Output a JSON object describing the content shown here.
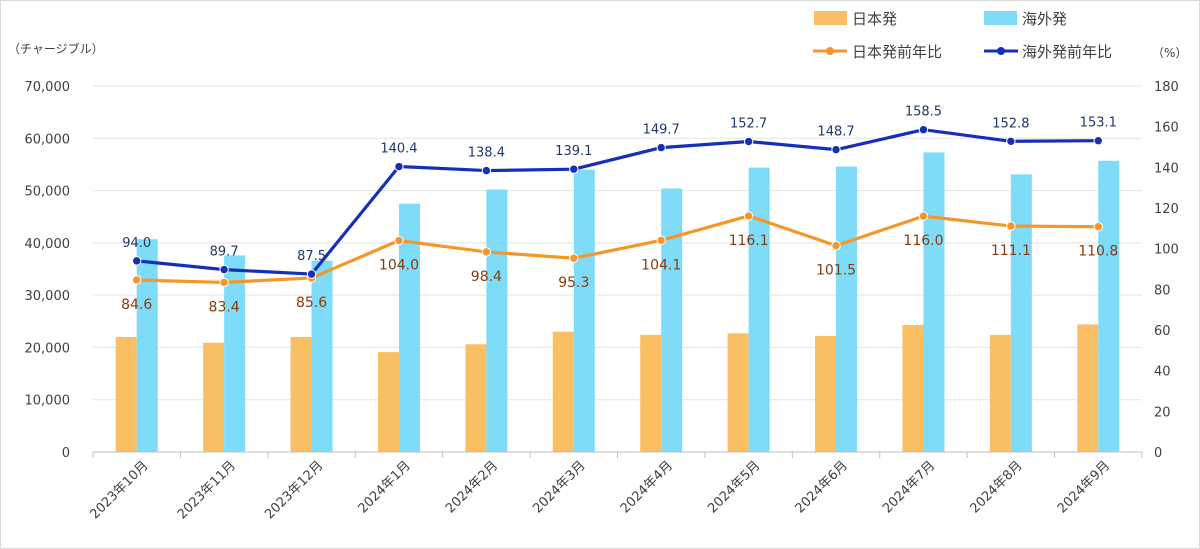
{
  "chart_data": {
    "type": "bar",
    "categories": [
      "2023年10月",
      "2023年11月",
      "2023年12月",
      "2024年1月",
      "2024年2月",
      "2024年3月",
      "2024年4月",
      "2024年5月",
      "2024年6月",
      "2024年7月",
      "2024年8月",
      "2024年9月"
    ],
    "left_axis_unit": "（チャージブル）",
    "right_axis_unit": "（%）",
    "left_axis": {
      "min": 0,
      "max": 70000,
      "step": 10000,
      "tick_labels": [
        "0",
        "10,000",
        "20,000",
        "30,000",
        "40,000",
        "50,000",
        "60,000",
        "70,000"
      ]
    },
    "right_axis": {
      "min": 0,
      "max": 180,
      "step": 20,
      "tick_labels": [
        "0",
        "20",
        "40",
        "60",
        "80",
        "100",
        "120",
        "140",
        "160",
        "180"
      ]
    },
    "series": [
      {
        "name": "日本発",
        "kind": "bar",
        "axis": "left",
        "color": "#fbbf63",
        "values": [
          22000,
          20900,
          22000,
          19100,
          20600,
          23000,
          22400,
          22700,
          22200,
          24300,
          22400,
          24400
        ]
      },
      {
        "name": "海外発",
        "kind": "bar",
        "axis": "left",
        "color": "#7fdcf8",
        "values": [
          40700,
          37600,
          36600,
          47500,
          50200,
          54000,
          50400,
          54400,
          54600,
          57300,
          53100,
          55700
        ]
      },
      {
        "name": "日本発前年比",
        "kind": "line",
        "axis": "right",
        "color": "#f5962b",
        "label_color": "#843c0c",
        "values": [
          84.6,
          83.4,
          85.6,
          104.0,
          98.4,
          95.3,
          104.1,
          116.1,
          101.5,
          116.0,
          111.1,
          110.8
        ],
        "labels": [
          "84.6",
          "83.4",
          "85.6",
          "104.0",
          "98.4",
          "95.3",
          "104.1",
          "116.1",
          "101.5",
          "116.0",
          "111.1",
          "110.8"
        ]
      },
      {
        "name": "海外発前年比",
        "kind": "line",
        "axis": "right",
        "color": "#1530b8",
        "label_color": "#1f3864",
        "values": [
          94.0,
          89.7,
          87.5,
          140.4,
          138.4,
          139.1,
          149.7,
          152.7,
          148.7,
          158.5,
          152.8,
          153.1
        ],
        "labels": [
          "94.0",
          "89.7",
          "87.5",
          "140.4",
          "138.4",
          "139.1",
          "149.7",
          "152.7",
          "148.7",
          "158.5",
          "152.8",
          "153.1"
        ]
      }
    ],
    "legend_position": "top-right",
    "grid": true
  }
}
